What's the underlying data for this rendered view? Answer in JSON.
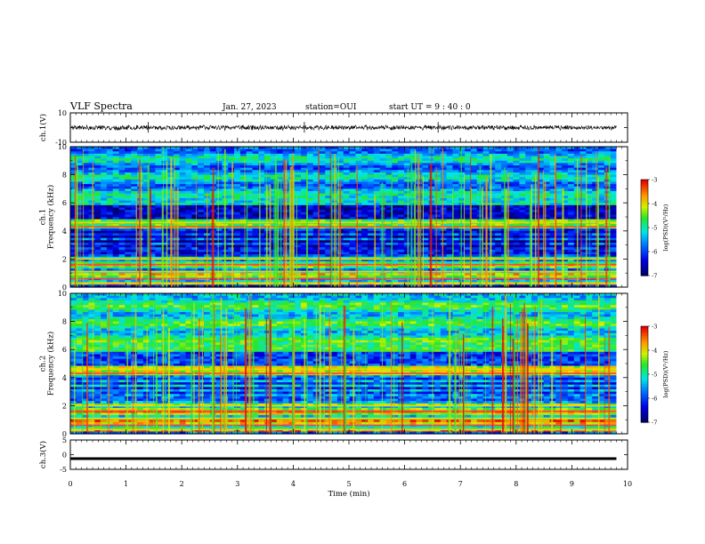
{
  "header": {
    "title": "VLF Spectra",
    "date": "Jan. 27, 2023",
    "station": "station=OUI",
    "start": "start  UT =   9 : 40 : 0"
  },
  "chart_data": [
    {
      "type": "line",
      "panel": "ch1-waveform",
      "ylabel": "ch.1(V)",
      "ylim": [
        -10,
        10
      ],
      "yticks": [
        "10",
        "-10"
      ],
      "xlim": [
        0,
        10
      ],
      "series": [
        {
          "values_range": [
            -2,
            2
          ],
          "color": "#000000"
        }
      ]
    },
    {
      "type": "heatmap",
      "panel": "ch1-spectrogram",
      "ylabel": "ch.1\nFrequency (kHz)",
      "ylim": [
        0,
        10
      ],
      "yticks": [
        "0",
        "2",
        "4",
        "6",
        "8",
        "10"
      ],
      "xlim": [
        0,
        10
      ],
      "colorbar": {
        "label": "log(PSD)(V²/Hz)",
        "ticks": [
          "-3",
          "-4",
          "-5",
          "-6",
          "-7"
        ],
        "range": [
          -7,
          -3
        ]
      },
      "bands_khz": [
        0.3,
        0.6,
        1.1,
        1.6,
        2.0,
        4.3,
        4.6
      ]
    },
    {
      "type": "heatmap",
      "panel": "ch2-spectrogram",
      "ylabel": "ch.2\nFrequency (kHz)",
      "ylim": [
        0,
        10
      ],
      "yticks": [
        "0",
        "2",
        "4",
        "6",
        "8",
        "10"
      ],
      "xlim": [
        0,
        10
      ],
      "colorbar": {
        "label": "log(PSD)(V²/Hz)",
        "ticks": [
          "-3",
          "-4",
          "-5",
          "-6",
          "-7"
        ],
        "range": [
          -7,
          -3
        ]
      },
      "bands_khz": [
        0.3,
        0.6,
        1.1,
        1.6,
        2.0,
        4.3,
        4.6
      ]
    },
    {
      "type": "line",
      "panel": "ch3-waveform",
      "ylabel": "ch.3(V)",
      "ylim": [
        -5,
        5
      ],
      "yticks": [
        "5",
        "0",
        "-5"
      ],
      "xlim": [
        0,
        10
      ],
      "series": [
        {
          "values_range": [
            -1.2,
            -0.9
          ],
          "color": "#000000"
        }
      ]
    }
  ],
  "xaxis": {
    "label": "Time (min)",
    "ticks": [
      "0",
      "1",
      "2",
      "3",
      "4",
      "5",
      "6",
      "7",
      "8",
      "9",
      "10"
    ],
    "data_end": 9.8
  },
  "colors": {
    "low": "#000080",
    "mid": "#00ff00",
    "high": "#ff0000",
    "trace": "#000000"
  }
}
